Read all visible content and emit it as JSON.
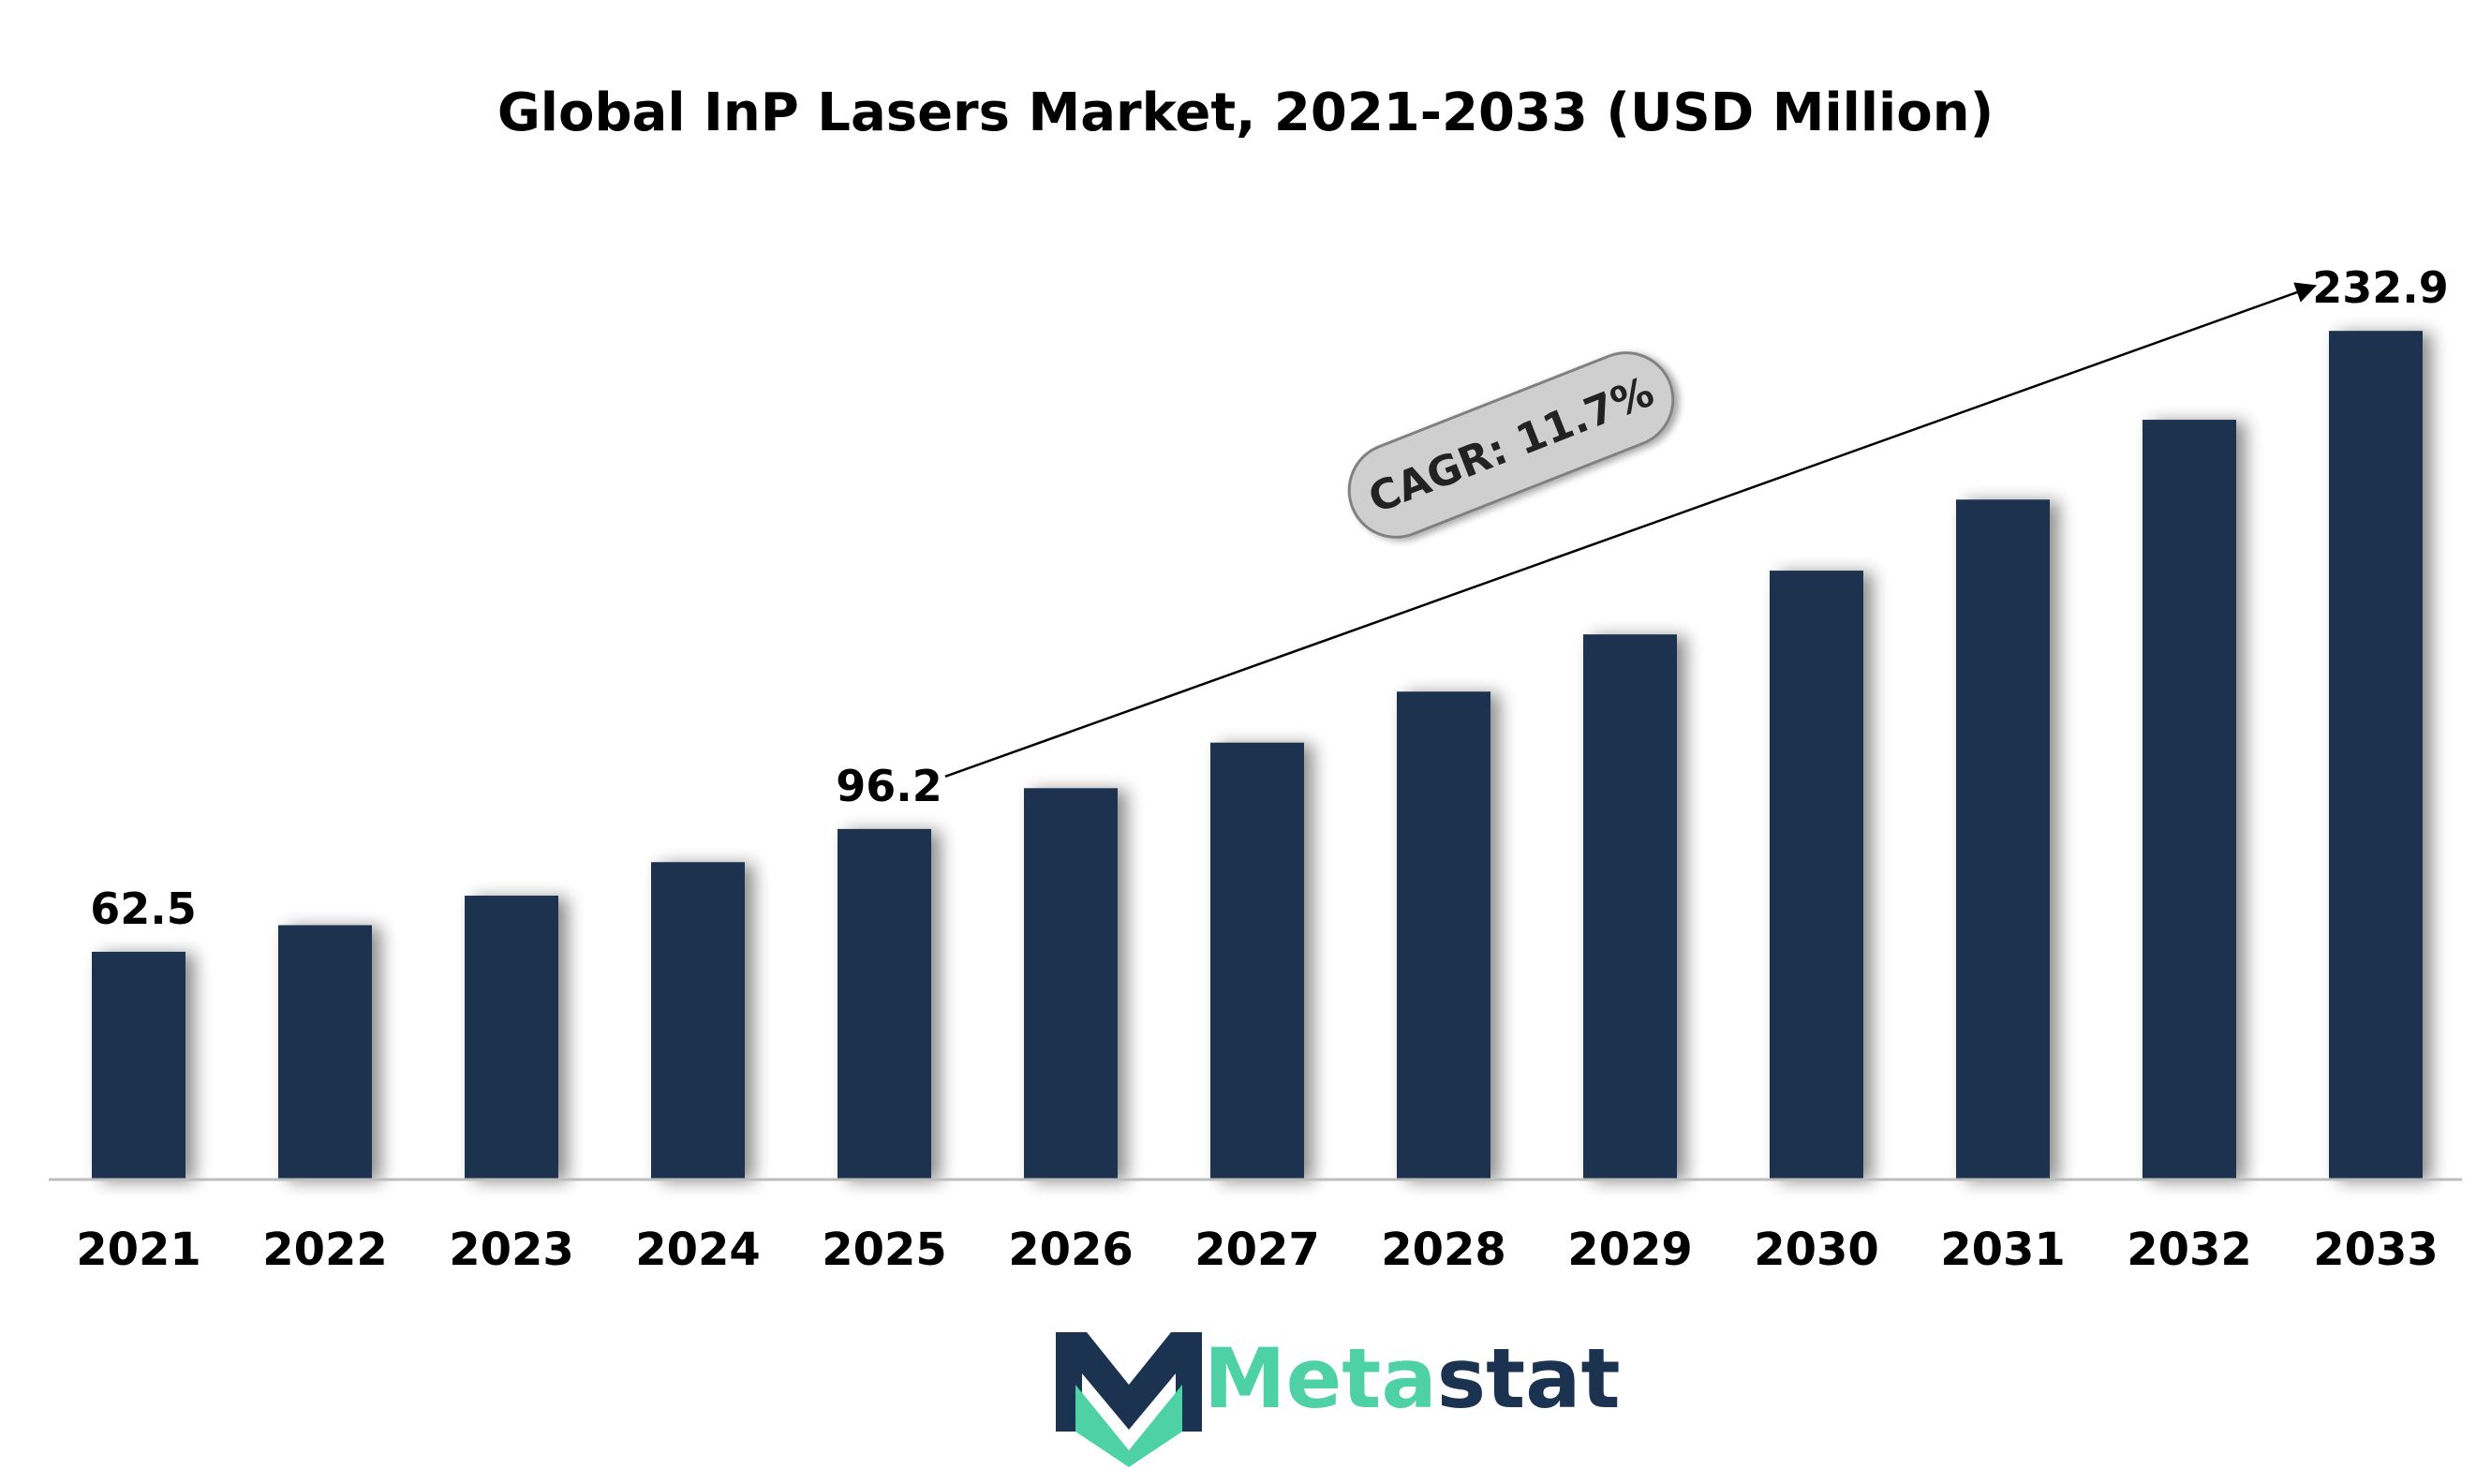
{
  "chart_data": {
    "type": "bar",
    "title": "Global InP Lasers Market, 2021-2033 (USD Million)",
    "categories": [
      "2021",
      "2022",
      "2023",
      "2024",
      "2025",
      "2026",
      "2027",
      "2028",
      "2029",
      "2030",
      "2031",
      "2032",
      "2033"
    ],
    "values": [
      62.5,
      69.8,
      77.9,
      87.1,
      96.2,
      107.4,
      119.9,
      133.9,
      149.6,
      167.1,
      186.6,
      208.5,
      232.9
    ],
    "data_labels": [
      {
        "category": "2021",
        "text": "62.5"
      },
      {
        "category": "2025",
        "text": "96.2"
      },
      {
        "category": "2033",
        "text": "232.9"
      }
    ],
    "annotation": {
      "text": "CAGR: 11.7%",
      "from": "2025",
      "to": "2033"
    },
    "ylim": [
      0,
      235
    ],
    "grid": false,
    "legend": "none",
    "xlabel": "",
    "ylabel": "",
    "bar_color": "#1b3350"
  },
  "logo": {
    "name_part1": "Meta",
    "name_part2": "stat",
    "color_primary": "#4fd1a6",
    "color_secondary": "#1b3350"
  }
}
